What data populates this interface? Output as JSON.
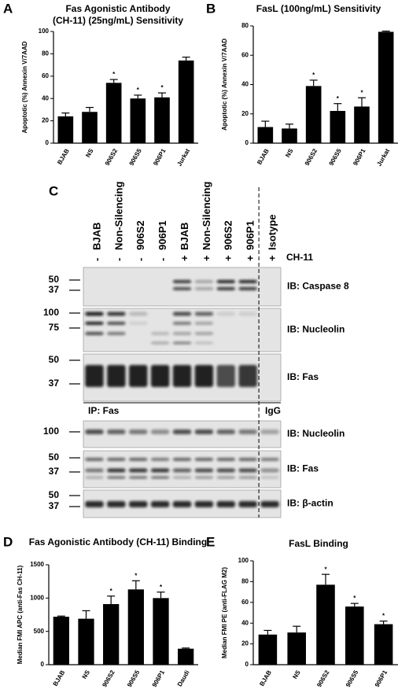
{
  "chart_data": [
    {
      "type": "bar",
      "panel": "A",
      "title": [
        "Fas Agonistic Antibody",
        "(CH-11) (25ng/mL) Sensitivity"
      ],
      "ylabel": "Apoptotic (%) Annexin V/7AAD",
      "categories": [
        "BJAB",
        "NS",
        "906S2",
        "906S5",
        "906P1",
        "Jurkat"
      ],
      "values": [
        24,
        28,
        54,
        40,
        41,
        74
      ],
      "errors": [
        3,
        4,
        3,
        3,
        4,
        3
      ],
      "annotations": [
        null,
        null,
        "*",
        "*",
        "*",
        null
      ],
      "color": "#000000",
      "ylim": [
        0,
        100
      ],
      "yticks": [
        0,
        20,
        40,
        60,
        80,
        100
      ]
    },
    {
      "type": "bar",
      "panel": "B",
      "title": [
        "FasL (100ng/mL) Sensitivity"
      ],
      "ylabel": "Apoptotic (%) Annexin V/7AAD",
      "categories": [
        "BJAB",
        "NS",
        "906S2",
        "906S5",
        "906P1",
        "Jurkat"
      ],
      "values": [
        11,
        10,
        39,
        22,
        25,
        76
      ],
      "errors": [
        4,
        3,
        4,
        5,
        6,
        0.5
      ],
      "annotations": [
        null,
        null,
        "*",
        "*",
        "*",
        null
      ],
      "color": "#000000",
      "ylim": [
        0,
        80
      ],
      "yticks": [
        0,
        20,
        40,
        60,
        80
      ]
    },
    {
      "type": "bar",
      "panel": "D",
      "title": [
        "Fas Agonistic Antibody (CH-11) Binding"
      ],
      "ylabel": "Median FMI APC (anti-Fas CH-11)",
      "categories": [
        "BJAB",
        "NS",
        "906S2",
        "906S5",
        "906P1",
        "Daudi"
      ],
      "values": [
        720,
        690,
        910,
        1130,
        1000,
        240
      ],
      "errors": [
        10,
        120,
        120,
        130,
        90,
        10
      ],
      "annotations": [
        null,
        null,
        "*",
        "*",
        "*",
        null
      ],
      "color": "#000000",
      "ylim": [
        0,
        1500
      ],
      "yticks": [
        0,
        500,
        1000,
        1500
      ]
    },
    {
      "type": "bar",
      "panel": "E",
      "title": [
        "FasL Binding"
      ],
      "ylabel": "Median FMI PE (anti-FLAG M2)",
      "categories": [
        "BJAB",
        "NS",
        "906S2",
        "906S5",
        "906P1"
      ],
      "values": [
        29,
        31,
        77,
        56,
        39
      ],
      "errors": [
        4,
        6,
        10,
        3,
        3
      ],
      "annotations": [
        null,
        null,
        "*",
        "*",
        "*"
      ],
      "color": "#000000",
      "ylim": [
        0,
        100
      ],
      "yticks": [
        0,
        20,
        40,
        60,
        80,
        100
      ]
    }
  ],
  "blot": {
    "panel": "C",
    "treatment_label": "CH-11",
    "lanes": [
      {
        "sign": "-",
        "name": "BJAB"
      },
      {
        "sign": "-",
        "name": "Non-Silencing"
      },
      {
        "sign": "-",
        "name": "906S2"
      },
      {
        "sign": "-",
        "name": "906P1"
      },
      {
        "sign": "+",
        "name": "BJAB"
      },
      {
        "sign": "+",
        "name": "Non-Silencing"
      },
      {
        "sign": "+",
        "name": "906S2"
      },
      {
        "sign": "+",
        "name": "906P1"
      },
      {
        "sign": "+",
        "name": "Isotype"
      }
    ],
    "rows": [
      {
        "markers": [
          "50",
          "37"
        ],
        "label": "IB: Caspase 8"
      },
      {
        "markers": [
          "100",
          "75"
        ],
        "label": "IB: Nucleolin"
      },
      {
        "markers": [
          "50",
          "37"
        ],
        "label": "IB: Fas"
      },
      {
        "markers": [
          "100"
        ],
        "label": "IB: Nucleolin"
      },
      {
        "markers": [
          "50",
          "37"
        ],
        "label": "IB: Fas"
      },
      {
        "markers": [
          "50",
          "37"
        ],
        "label": "IB: β-actin"
      }
    ],
    "ip_label": "IP: Fas",
    "igg_label": "IgG"
  }
}
